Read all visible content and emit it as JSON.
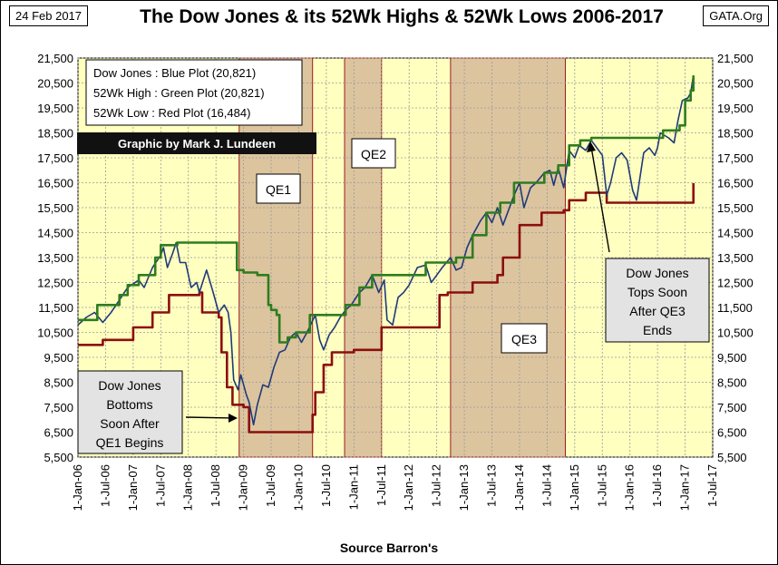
{
  "header": {
    "date": "24 Feb 2017",
    "title": "The Dow Jones & its 52Wk Highs & 52Wk Lows 2006-2017",
    "source_tag": "GATA.Org"
  },
  "footer": {
    "source": "Source Barron's"
  },
  "legend": {
    "lines": [
      "Dow Jones : Blue Plot    (20,821)",
      "52Wk High : Green Plot (20,821)",
      "52Wk Low  : Red Plot    (16,484)"
    ]
  },
  "credit": "Graphic by Mark J. Lundeen",
  "annotations": {
    "qe1": "QE1",
    "qe2": "QE2",
    "qe3": "QE3",
    "bottom_note": [
      "Dow Jones",
      "Bottoms",
      "Soon After",
      "QE1 Begins"
    ],
    "top_note": [
      "Dow Jones",
      "Tops Soon",
      "After QE3",
      "Ends"
    ]
  },
  "colors": {
    "plot_bg": "#ffffc0",
    "qe_shade": "#dcc49e",
    "qe_border": "#9b1c1c",
    "dow": "#1f3a7a",
    "high": "#2e7d1e",
    "low": "#8b0f0f",
    "grid": "#9a9a9a"
  },
  "chart_data": {
    "type": "line",
    "x_ticks": [
      "1-Jan-06",
      "1-Jul-06",
      "1-Jan-07",
      "1-Jul-07",
      "1-Jan-08",
      "1-Jul-08",
      "1-Jan-09",
      "1-Jul-09",
      "1-Jan-10",
      "1-Jul-10",
      "1-Jan-11",
      "1-Jul-11",
      "1-Jan-12",
      "1-Jul-12",
      "1-Jan-13",
      "1-Jul-13",
      "1-Jan-14",
      "1-Jul-14",
      "1-Jan-15",
      "1-Jul-15",
      "1-Jan-16",
      "1-Jul-16",
      "1-Jan-17",
      "1-Jul-17"
    ],
    "y_ticks": [
      "5,500",
      "6,500",
      "7,500",
      "8,500",
      "9,500",
      "10,500",
      "11,500",
      "12,500",
      "13,500",
      "14,500",
      "15,500",
      "16,500",
      "17,500",
      "18,500",
      "19,500",
      "20,500",
      "21,500"
    ],
    "ylim": [
      5500,
      21500
    ],
    "xlim": [
      2006.0,
      2017.5
    ],
    "qe_periods": [
      {
        "name": "QE1",
        "start": 2008.92,
        "end": 2010.25
      },
      {
        "name": "QE2",
        "start": 2010.83,
        "end": 2011.5
      },
      {
        "name": "QE3",
        "start": 2012.75,
        "end": 2014.83
      }
    ],
    "series": [
      {
        "name": "Dow Jones",
        "points": [
          [
            2006.0,
            10800
          ],
          [
            2006.15,
            11100
          ],
          [
            2006.3,
            11300
          ],
          [
            2006.45,
            10900
          ],
          [
            2006.6,
            11300
          ],
          [
            2006.75,
            11800
          ],
          [
            2006.9,
            12300
          ],
          [
            2007.0,
            12450
          ],
          [
            2007.1,
            12600
          ],
          [
            2007.2,
            12300
          ],
          [
            2007.35,
            13100
          ],
          [
            2007.5,
            13600
          ],
          [
            2007.55,
            13900
          ],
          [
            2007.62,
            13100
          ],
          [
            2007.72,
            13700
          ],
          [
            2007.78,
            14100
          ],
          [
            2007.85,
            13300
          ],
          [
            2007.95,
            13300
          ],
          [
            2008.05,
            12300
          ],
          [
            2008.15,
            12500
          ],
          [
            2008.2,
            12100
          ],
          [
            2008.33,
            13000
          ],
          [
            2008.45,
            12100
          ],
          [
            2008.55,
            11300
          ],
          [
            2008.65,
            11600
          ],
          [
            2008.72,
            11300
          ],
          [
            2008.77,
            10500
          ],
          [
            2008.82,
            8600
          ],
          [
            2008.9,
            8200
          ],
          [
            2008.95,
            8800
          ],
          [
            2009.05,
            8000
          ],
          [
            2009.1,
            7700
          ],
          [
            2009.18,
            6800
          ],
          [
            2009.25,
            7600
          ],
          [
            2009.35,
            8400
          ],
          [
            2009.45,
            8300
          ],
          [
            2009.55,
            9100
          ],
          [
            2009.65,
            9700
          ],
          [
            2009.75,
            9800
          ],
          [
            2009.85,
            10300
          ],
          [
            2009.95,
            10500
          ],
          [
            2010.05,
            10100
          ],
          [
            2010.15,
            10500
          ],
          [
            2010.3,
            11200
          ],
          [
            2010.38,
            10200
          ],
          [
            2010.45,
            9800
          ],
          [
            2010.55,
            10400
          ],
          [
            2010.65,
            10700
          ],
          [
            2010.75,
            11100
          ],
          [
            2010.85,
            11400
          ],
          [
            2010.95,
            11600
          ],
          [
            2011.1,
            12100
          ],
          [
            2011.2,
            12300
          ],
          [
            2011.33,
            12800
          ],
          [
            2011.45,
            12100
          ],
          [
            2011.55,
            12600
          ],
          [
            2011.6,
            11000
          ],
          [
            2011.7,
            10800
          ],
          [
            2011.8,
            11900
          ],
          [
            2011.9,
            12100
          ],
          [
            2012.0,
            12400
          ],
          [
            2012.15,
            13100
          ],
          [
            2012.3,
            13200
          ],
          [
            2012.4,
            12500
          ],
          [
            2012.5,
            12800
          ],
          [
            2012.6,
            13100
          ],
          [
            2012.75,
            13500
          ],
          [
            2012.85,
            13000
          ],
          [
            2012.95,
            13100
          ],
          [
            2013.05,
            13900
          ],
          [
            2013.15,
            14400
          ],
          [
            2013.3,
            15000
          ],
          [
            2013.4,
            15300
          ],
          [
            2013.5,
            14900
          ],
          [
            2013.6,
            15500
          ],
          [
            2013.7,
            14800
          ],
          [
            2013.8,
            15400
          ],
          [
            2013.9,
            16000
          ],
          [
            2014.0,
            16500
          ],
          [
            2014.08,
            15500
          ],
          [
            2014.2,
            16300
          ],
          [
            2014.3,
            16500
          ],
          [
            2014.45,
            16900
          ],
          [
            2014.55,
            17000
          ],
          [
            2014.62,
            16400
          ],
          [
            2014.7,
            17100
          ],
          [
            2014.8,
            16300
          ],
          [
            2014.9,
            17800
          ],
          [
            2015.0,
            17500
          ],
          [
            2015.08,
            18000
          ],
          [
            2015.2,
            17800
          ],
          [
            2015.3,
            18200
          ],
          [
            2015.4,
            17900
          ],
          [
            2015.5,
            17600
          ],
          [
            2015.58,
            16000
          ],
          [
            2015.65,
            16500
          ],
          [
            2015.75,
            17500
          ],
          [
            2015.85,
            17700
          ],
          [
            2015.95,
            17400
          ],
          [
            2016.05,
            16200
          ],
          [
            2016.12,
            15800
          ],
          [
            2016.25,
            17700
          ],
          [
            2016.35,
            17900
          ],
          [
            2016.45,
            17600
          ],
          [
            2016.5,
            17900
          ],
          [
            2016.55,
            18500
          ],
          [
            2016.7,
            18300
          ],
          [
            2016.8,
            18100
          ],
          [
            2016.87,
            19000
          ],
          [
            2016.95,
            19800
          ],
          [
            2017.05,
            19900
          ],
          [
            2017.1,
            20100
          ],
          [
            2017.15,
            20800
          ]
        ]
      },
      {
        "name": "52Wk High",
        "points": [
          [
            2006.0,
            11000
          ],
          [
            2006.35,
            11600
          ],
          [
            2006.75,
            12000
          ],
          [
            2006.9,
            12400
          ],
          [
            2007.1,
            12800
          ],
          [
            2007.4,
            13500
          ],
          [
            2007.5,
            14000
          ],
          [
            2007.8,
            14100
          ],
          [
            2008.8,
            14100
          ],
          [
            2008.88,
            13000
          ],
          [
            2009.0,
            12900
          ],
          [
            2009.25,
            12800
          ],
          [
            2009.45,
            11600
          ],
          [
            2009.5,
            11400
          ],
          [
            2009.6,
            11200
          ],
          [
            2009.65,
            10100
          ],
          [
            2009.8,
            10300
          ],
          [
            2009.95,
            10500
          ],
          [
            2010.2,
            11200
          ],
          [
            2010.7,
            11200
          ],
          [
            2010.85,
            11600
          ],
          [
            2011.1,
            12300
          ],
          [
            2011.33,
            12800
          ],
          [
            2012.0,
            12800
          ],
          [
            2012.3,
            13300
          ],
          [
            2012.85,
            13500
          ],
          [
            2013.15,
            14400
          ],
          [
            2013.4,
            15300
          ],
          [
            2013.65,
            15700
          ],
          [
            2013.9,
            16500
          ],
          [
            2014.45,
            16900
          ],
          [
            2014.7,
            17200
          ],
          [
            2014.9,
            18000
          ],
          [
            2015.1,
            18200
          ],
          [
            2015.3,
            18300
          ],
          [
            2016.5,
            18300
          ],
          [
            2016.6,
            18600
          ],
          [
            2016.9,
            18800
          ],
          [
            2017.0,
            19800
          ],
          [
            2017.1,
            20200
          ],
          [
            2017.15,
            20800
          ]
        ]
      },
      {
        "name": "52Wk Low",
        "points": [
          [
            2006.0,
            10000
          ],
          [
            2006.4,
            10000
          ],
          [
            2006.45,
            10200
          ],
          [
            2006.9,
            10200
          ],
          [
            2007.0,
            10700
          ],
          [
            2007.3,
            10700
          ],
          [
            2007.35,
            11300
          ],
          [
            2007.6,
            11300
          ],
          [
            2007.65,
            12000
          ],
          [
            2008.2,
            12100
          ],
          [
            2008.25,
            11300
          ],
          [
            2008.55,
            11100
          ],
          [
            2008.6,
            9700
          ],
          [
            2008.7,
            8300
          ],
          [
            2008.8,
            7600
          ],
          [
            2009.0,
            7500
          ],
          [
            2009.1,
            6500
          ],
          [
            2010.2,
            6500
          ],
          [
            2010.25,
            7200
          ],
          [
            2010.3,
            8100
          ],
          [
            2010.4,
            8100
          ],
          [
            2010.45,
            9200
          ],
          [
            2010.6,
            9700
          ],
          [
            2010.9,
            9700
          ],
          [
            2011.0,
            9800
          ],
          [
            2011.4,
            9800
          ],
          [
            2011.5,
            10700
          ],
          [
            2012.45,
            10700
          ],
          [
            2012.55,
            12000
          ],
          [
            2012.7,
            12100
          ],
          [
            2013.05,
            12100
          ],
          [
            2013.15,
            12500
          ],
          [
            2013.6,
            12800
          ],
          [
            2013.7,
            13500
          ],
          [
            2013.9,
            13500
          ],
          [
            2014.0,
            14800
          ],
          [
            2014.2,
            14800
          ],
          [
            2014.4,
            15300
          ],
          [
            2014.8,
            15400
          ],
          [
            2014.9,
            15800
          ],
          [
            2015.2,
            16100
          ],
          [
            2015.5,
            16100
          ],
          [
            2015.58,
            15700
          ],
          [
            2016.1,
            15700
          ],
          [
            2016.4,
            15700
          ],
          [
            2017.1,
            15700
          ],
          [
            2017.15,
            16484
          ]
        ]
      }
    ]
  }
}
